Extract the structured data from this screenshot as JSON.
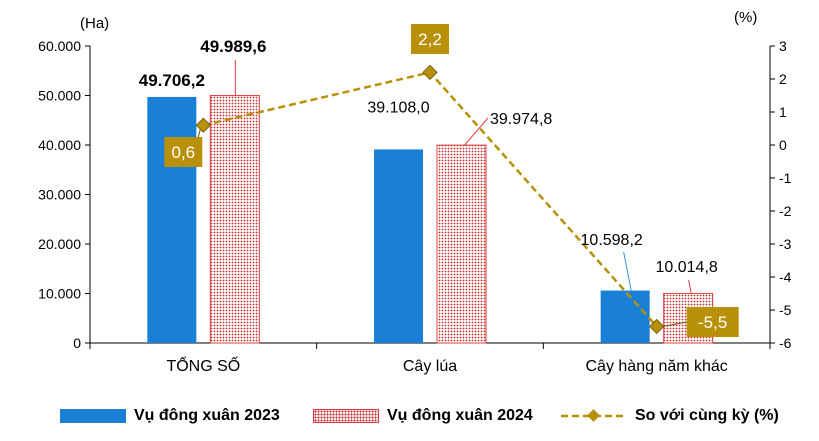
{
  "chart_data": {
    "type": "bar",
    "categories": [
      "TỔNG SỐ",
      "Cây lúa",
      "Cây hàng năm khác"
    ],
    "left_axis": {
      "unit": "(Ha)",
      "ylim": [
        0,
        60000
      ],
      "ticks": [
        0,
        10000,
        20000,
        30000,
        40000,
        50000,
        60000
      ],
      "tick_labels": [
        "0",
        "10.000",
        "20.000",
        "30.000",
        "40.000",
        "50.000",
        "60.000"
      ]
    },
    "right_axis": {
      "unit": "(%)",
      "ylim": [
        -6,
        3
      ],
      "ticks": [
        -6,
        -5,
        -4,
        -3,
        -2,
        -1,
        0,
        1,
        2,
        3
      ],
      "tick_labels": [
        "-6",
        "-5",
        "-4",
        "-3",
        "-2",
        "-1",
        "0",
        "1",
        "2",
        "3"
      ]
    },
    "series": [
      {
        "name": "Vụ đông xuân 2023",
        "kind": "bar",
        "color": "#1a7fd6",
        "values": [
          49706.2,
          39108.0,
          10598.2
        ],
        "labels": [
          "49.706,2",
          "39.108,0",
          "10.598,2"
        ]
      },
      {
        "name": "Vụ đông xuân 2024",
        "kind": "bar",
        "color": "#c62828",
        "pattern": "dotted",
        "values": [
          49989.6,
          39974.8,
          10014.8
        ],
        "labels": [
          "49.989,6",
          "39.974,8",
          "10.014,8"
        ]
      },
      {
        "name": "So với cùng kỳ (%)",
        "kind": "line",
        "axis": "right",
        "color": "#b8900a",
        "values": [
          0.6,
          2.2,
          -5.5
        ],
        "labels": [
          "0,6",
          "2,2",
          "-5,5"
        ]
      }
    ],
    "legend_position": "bottom",
    "grid": false
  }
}
